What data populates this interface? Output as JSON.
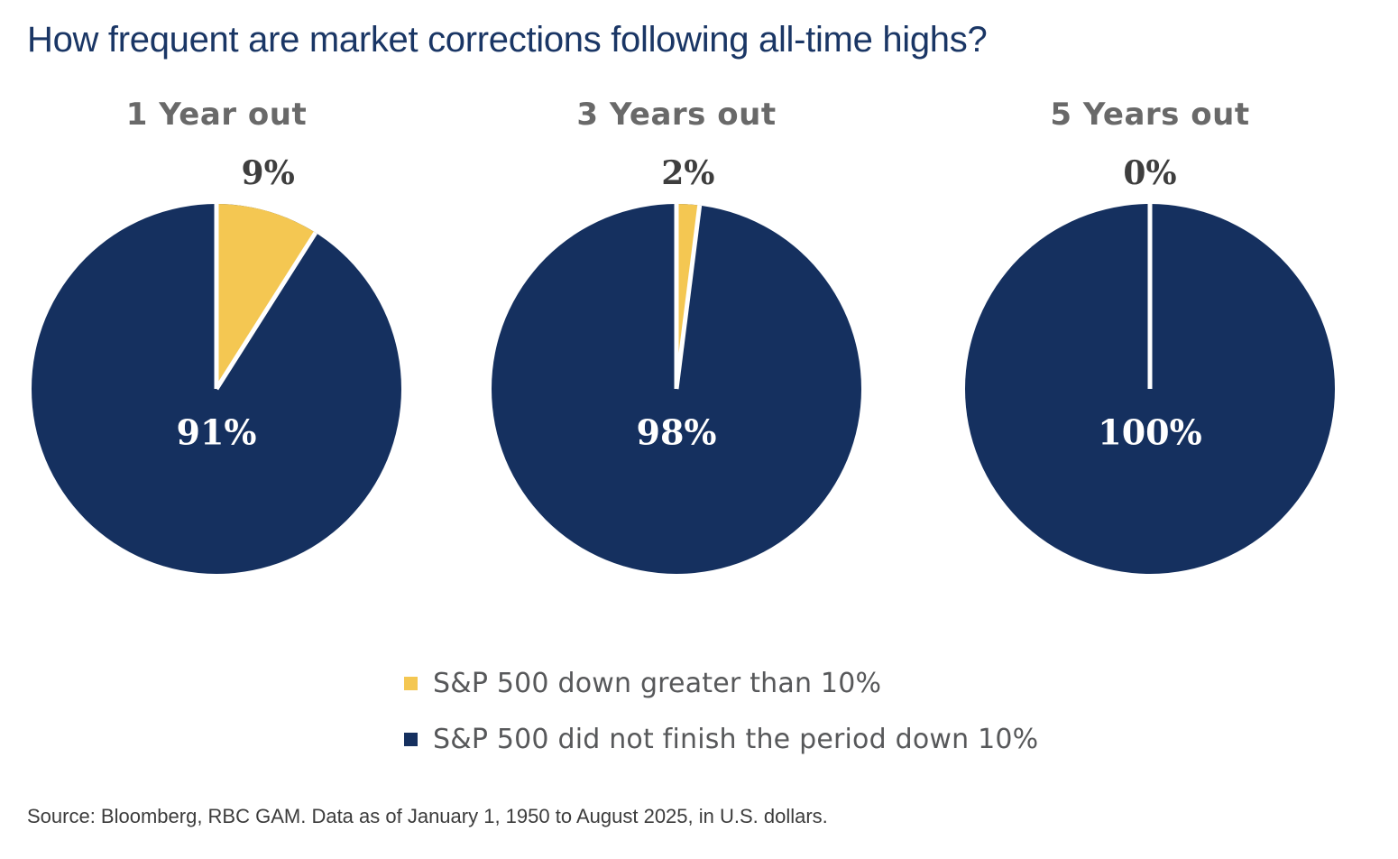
{
  "page": {
    "title": "How frequent are market corrections following all-time highs?",
    "source": "Source: Bloomberg, RBC GAM. Data as of January 1, 1950 to August 2025, in U.S. dollars."
  },
  "colors": {
    "navy": "#15305F",
    "yellow": "#F4C752",
    "title_navy": "#1A3665",
    "heading_gray": "#696969",
    "value_label_gray": "#3E3E3E",
    "legend_text_gray": "#57585A"
  },
  "legend": {
    "items": [
      {
        "label": "S&P 500 down greater than 10%",
        "color": "#F4C752"
      },
      {
        "label": "S&P 500 did not finish the period down 10%",
        "color": "#15305F"
      }
    ]
  },
  "chart_data": {
    "type": "pie",
    "title": "How frequent are market corrections following all-time highs?",
    "legend_position": "bottom",
    "series_colors": {
      "down_gt_10": "#F4C752",
      "not_down_10": "#15305F"
    },
    "pies": [
      {
        "title": "1 Year out",
        "slices": [
          {
            "name": "S&P 500 down greater than 10%",
            "value": 9,
            "label": "9%"
          },
          {
            "name": "S&P 500 did not finish the period down 10%",
            "value": 91,
            "label": "91%"
          }
        ]
      },
      {
        "title": "3 Years out",
        "slices": [
          {
            "name": "S&P 500 down greater than 10%",
            "value": 2,
            "label": "2%"
          },
          {
            "name": "S&P 500 did not finish the period down 10%",
            "value": 98,
            "label": "98%"
          }
        ]
      },
      {
        "title": "5 Years out",
        "slices": [
          {
            "name": "S&P 500 down greater than 10%",
            "value": 0,
            "label": "0%"
          },
          {
            "name": "S&P 500 did not finish the period down 10%",
            "value": 100,
            "label": "100%"
          }
        ]
      }
    ]
  }
}
